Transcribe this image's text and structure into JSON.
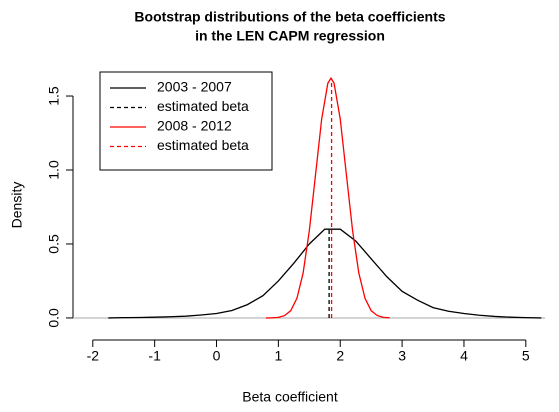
{
  "chart_data": {
    "type": "line",
    "title": [
      "Bootstrap distributions of the beta coefficients",
      "in the LEN CAPM regression"
    ],
    "xlabel": "Beta coefficient",
    "ylabel": "Density",
    "xlim": [
      -2.32,
      5.31
    ],
    "ylim": [
      -0.068,
      1.73
    ],
    "xticks": [
      -2,
      -1,
      0,
      1,
      2,
      3,
      4,
      5
    ],
    "yticks": [
      {
        "value": 0,
        "label": "0.0"
      },
      0.5,
      {
        "value": 1,
        "label": "1.0"
      },
      1.5
    ],
    "zero_line": true,
    "legend": "topleft",
    "series": [
      {
        "name": "2003 - 2007",
        "color": "#000000",
        "dash": false,
        "x": [
          -1.75,
          -1.5,
          -1.25,
          -1,
          -0.75,
          -0.5,
          -0.25,
          0,
          0.25,
          0.5,
          0.75,
          1,
          1.25,
          1.5,
          1.75,
          2,
          2.25,
          2.5,
          2.75,
          3,
          3.25,
          3.5,
          3.75,
          4,
          4.25,
          4.5,
          4.75,
          5,
          5.25
        ],
        "values": [
          0,
          0.002,
          0.003,
          0.005,
          0.008,
          0.012,
          0.02,
          0.03,
          0.05,
          0.09,
          0.15,
          0.25,
          0.37,
          0.5,
          0.6,
          0.6,
          0.52,
          0.4,
          0.28,
          0.18,
          0.12,
          0.07,
          0.045,
          0.03,
          0.018,
          0.01,
          0.005,
          0.002,
          0
        ]
      },
      {
        "name": "estimated beta",
        "color": "#000000",
        "dash": true,
        "x": [
          1.82,
          1.82
        ],
        "values": [
          0,
          0.615
        ]
      },
      {
        "name": "2008 - 2012",
        "color": "#ff0000",
        "dash": false,
        "x": [
          0.8,
          0.9,
          1.0,
          1.1,
          1.2,
          1.3,
          1.4,
          1.5,
          1.6,
          1.7,
          1.8,
          1.85,
          1.9,
          2.0,
          2.1,
          2.2,
          2.3,
          2.4,
          2.5,
          2.6,
          2.7,
          2.8
        ],
        "values": [
          0,
          0.001,
          0.004,
          0.016,
          0.049,
          0.133,
          0.304,
          0.589,
          0.966,
          1.345,
          1.587,
          1.62,
          1.587,
          1.345,
          0.966,
          0.589,
          0.304,
          0.133,
          0.049,
          0.016,
          0.004,
          0.001
        ]
      },
      {
        "name": "estimated beta",
        "color": "#ff0000",
        "dash": true,
        "x": [
          1.86,
          1.86
        ],
        "values": [
          0,
          1.62
        ]
      }
    ]
  }
}
